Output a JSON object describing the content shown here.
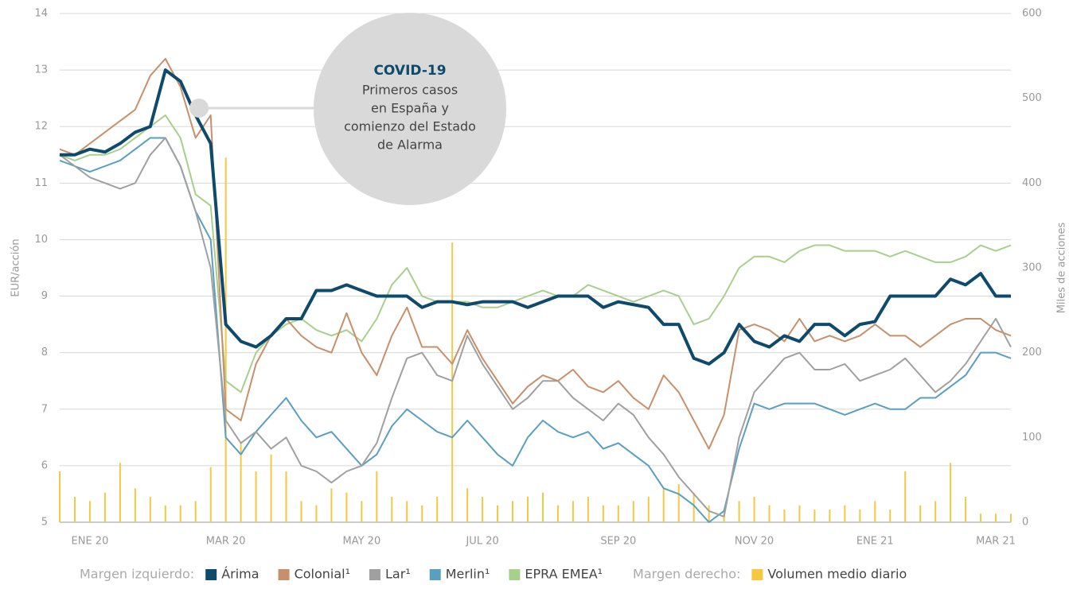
{
  "chart_data": {
    "type": "line",
    "ylabel": "EUR/acción",
    "y2label": "Miles de acciones",
    "ylim": [
      5,
      14
    ],
    "yticks": [
      5,
      6,
      7,
      8,
      9,
      10,
      11,
      12,
      13,
      14
    ],
    "y2lim": [
      0,
      600
    ],
    "y2ticks": [
      0,
      100,
      200,
      300,
      400,
      500,
      600
    ],
    "grid": true,
    "categories": [
      null,
      null,
      "ENE 20",
      null,
      null,
      null,
      null,
      null,
      null,
      null,
      null,
      "MAR 20",
      null,
      null,
      null,
      null,
      null,
      null,
      null,
      null,
      "MAY 20",
      null,
      null,
      null,
      null,
      null,
      null,
      null,
      "JUL 20",
      null,
      null,
      null,
      null,
      null,
      null,
      null,
      null,
      "SEP 20",
      null,
      null,
      null,
      null,
      null,
      null,
      null,
      null,
      "NOV 20",
      null,
      null,
      null,
      null,
      null,
      null,
      null,
      "ENE 21",
      null,
      null,
      null,
      null,
      null,
      null,
      null,
      "MAR 21",
      null
    ],
    "legend_left_label": "Margen izquierdo:",
    "legend_right_label": "Margen derecho:",
    "series": [
      {
        "name": "Árima",
        "color": "#0d4a6b",
        "linewidth": 4,
        "values": [
          11.5,
          11.5,
          11.6,
          11.55,
          11.7,
          11.9,
          12.0,
          13.0,
          12.8,
          12.2,
          11.7,
          8.5,
          8.2,
          8.1,
          8.3,
          8.6,
          8.6,
          9.1,
          9.1,
          9.2,
          9.1,
          9.0,
          9.0,
          9.0,
          8.8,
          8.9,
          8.9,
          8.85,
          8.9,
          8.9,
          8.9,
          8.8,
          8.9,
          9.0,
          9.0,
          9.0,
          8.8,
          8.9,
          8.85,
          8.8,
          8.5,
          8.5,
          7.9,
          7.8,
          8.0,
          8.5,
          8.2,
          8.1,
          8.3,
          8.2,
          8.5,
          8.5,
          8.3,
          8.5,
          8.55,
          9.0,
          9.0,
          9.0,
          9.0,
          9.3,
          9.2,
          9.4,
          9.0,
          9.0
        ]
      },
      {
        "name": "Colonial¹",
        "color": "#c8906a",
        "linewidth": 2,
        "values": [
          11.6,
          11.5,
          11.7,
          11.9,
          12.1,
          12.3,
          12.9,
          13.2,
          12.7,
          11.8,
          12.2,
          7.0,
          6.8,
          7.8,
          8.3,
          8.6,
          8.3,
          8.1,
          8.0,
          8.7,
          8.0,
          7.6,
          8.3,
          8.8,
          8.1,
          8.1,
          7.8,
          8.4,
          7.9,
          7.5,
          7.1,
          7.4,
          7.6,
          7.5,
          7.7,
          7.4,
          7.3,
          7.5,
          7.2,
          7.0,
          7.6,
          7.3,
          6.8,
          6.3,
          6.9,
          8.4,
          8.5,
          8.4,
          8.2,
          8.6,
          8.2,
          8.3,
          8.2,
          8.3,
          8.5,
          8.3,
          8.3,
          8.1,
          8.3,
          8.5,
          8.6,
          8.6,
          8.4,
          8.3
        ]
      },
      {
        "name": "Lar¹",
        "color": "#a0a0a0",
        "linewidth": 2,
        "values": [
          11.5,
          11.3,
          11.1,
          11.0,
          10.9,
          11.0,
          11.5,
          11.8,
          11.3,
          10.5,
          9.5,
          6.8,
          6.4,
          6.6,
          6.3,
          6.5,
          6.0,
          5.9,
          5.7,
          5.9,
          6.0,
          6.4,
          7.2,
          7.9,
          8.0,
          7.6,
          7.5,
          8.3,
          7.8,
          7.4,
          7.0,
          7.2,
          7.5,
          7.5,
          7.2,
          7.0,
          6.8,
          7.1,
          6.9,
          6.5,
          6.2,
          5.8,
          5.5,
          5.2,
          5.1,
          6.5,
          7.3,
          7.6,
          7.9,
          8.0,
          7.7,
          7.7,
          7.8,
          7.5,
          7.6,
          7.7,
          7.9,
          7.6,
          7.3,
          7.5,
          7.8,
          8.2,
          8.6,
          8.1
        ]
      },
      {
        "name": "Merlin¹",
        "color": "#5a9fc0",
        "linewidth": 2,
        "values": [
          11.4,
          11.3,
          11.2,
          11.3,
          11.4,
          11.6,
          11.8,
          11.8,
          11.3,
          10.5,
          10.0,
          6.5,
          6.2,
          6.6,
          6.9,
          7.2,
          6.8,
          6.5,
          6.6,
          6.3,
          6.0,
          6.2,
          6.7,
          7.0,
          6.8,
          6.6,
          6.5,
          6.8,
          6.5,
          6.2,
          6.0,
          6.5,
          6.8,
          6.6,
          6.5,
          6.6,
          6.3,
          6.4,
          6.2,
          6.0,
          5.6,
          5.5,
          5.3,
          5.0,
          5.2,
          6.3,
          7.1,
          7.0,
          7.1,
          7.1,
          7.1,
          7.0,
          6.9,
          7.0,
          7.1,
          7.0,
          7.0,
          7.2,
          7.2,
          7.4,
          7.6,
          8.0,
          8.0,
          7.9
        ]
      },
      {
        "name": "EPRA EMEA¹",
        "color": "#a8d08d",
        "linewidth": 2,
        "values": [
          11.5,
          11.4,
          11.5,
          11.5,
          11.6,
          11.8,
          12.0,
          12.2,
          11.8,
          10.8,
          10.6,
          7.5,
          7.3,
          8.0,
          8.3,
          8.5,
          8.6,
          8.4,
          8.3,
          8.4,
          8.2,
          8.6,
          9.2,
          9.5,
          9.0,
          8.9,
          8.9,
          8.9,
          8.8,
          8.8,
          8.9,
          9.0,
          9.1,
          9.0,
          9.0,
          9.2,
          9.1,
          9.0,
          8.9,
          9.0,
          9.1,
          9.0,
          8.5,
          8.6,
          9.0,
          9.5,
          9.7,
          9.7,
          9.6,
          9.8,
          9.9,
          9.9,
          9.8,
          9.8,
          9.8,
          9.7,
          9.8,
          9.7,
          9.6,
          9.6,
          9.7,
          9.9,
          9.8,
          9.9
        ]
      },
      {
        "name": "Volumen medio diario",
        "color": "#f5c842",
        "type": "bar",
        "axis": "y2",
        "values": [
          60,
          30,
          25,
          35,
          70,
          40,
          30,
          20,
          20,
          25,
          65,
          430,
          95,
          60,
          80,
          60,
          25,
          20,
          40,
          35,
          25,
          60,
          30,
          25,
          20,
          30,
          330,
          40,
          30,
          20,
          25,
          30,
          35,
          20,
          25,
          30,
          20,
          20,
          25,
          30,
          40,
          45,
          35,
          20,
          15,
          25,
          30,
          20,
          15,
          20,
          15,
          15,
          20,
          15,
          25,
          15,
          60,
          20,
          25,
          70,
          30,
          10,
          10,
          10
        ]
      }
    ],
    "annotation": {
      "title": "COVID-19",
      "lines": [
        "Primeros casos",
        "en España y",
        "comienzo del Estado",
        "de Alarma"
      ]
    }
  }
}
